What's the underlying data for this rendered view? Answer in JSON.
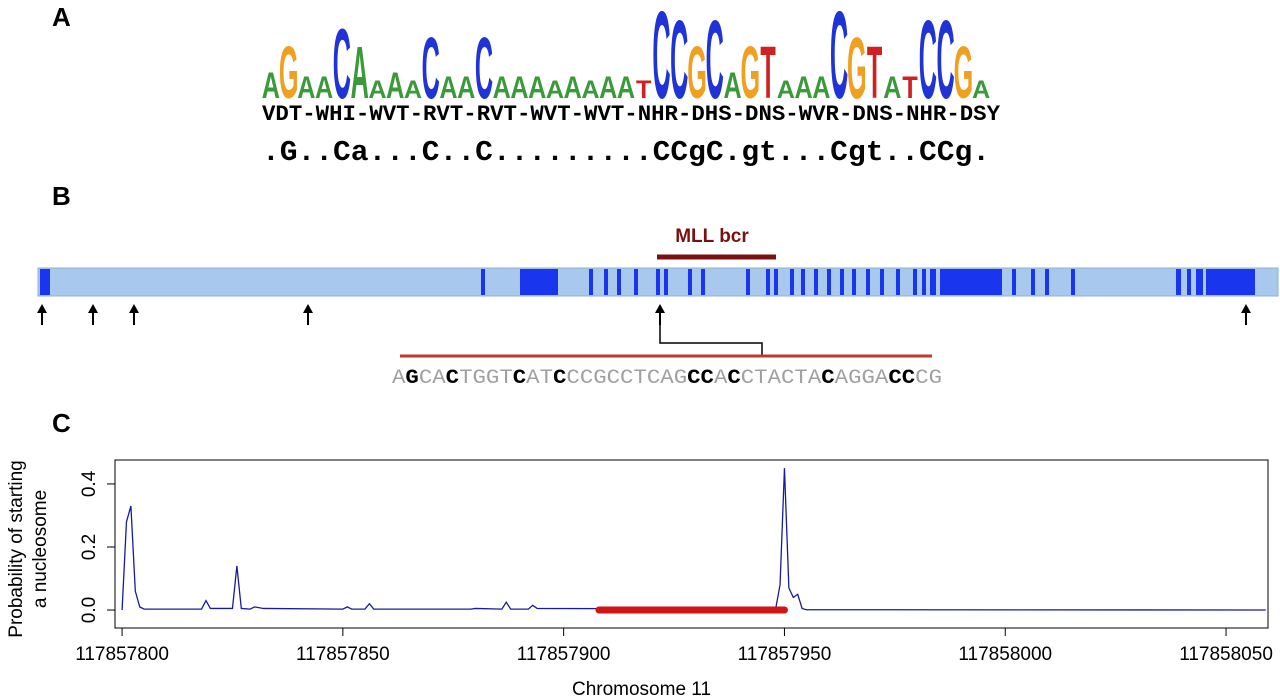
{
  "panel_labels": [
    "A",
    "B",
    "C"
  ],
  "logo": {
    "colors": {
      "A": "#3a9a3a",
      "C": "#1f33d6",
      "G": "#f0a020",
      "T": "#d02020"
    },
    "letters": [
      "A",
      "G",
      "A",
      "A",
      "C",
      "A",
      "A",
      "A",
      "A",
      "C",
      "A",
      "A",
      "C",
      "A",
      "A",
      "A",
      "A",
      "A",
      "A",
      "A",
      "A",
      "T",
      "C",
      "C",
      "G",
      "C",
      "A",
      "G",
      "T",
      "A",
      "A",
      "A",
      "C",
      "G",
      "T",
      "A",
      "T",
      "C",
      "C",
      "G",
      "A"
    ],
    "heights": [
      0.3,
      0.6,
      0.25,
      0.25,
      0.8,
      0.6,
      0.2,
      0.3,
      0.2,
      0.7,
      0.25,
      0.25,
      0.7,
      0.25,
      0.25,
      0.25,
      0.2,
      0.25,
      0.2,
      0.25,
      0.25,
      0.2,
      1,
      0.9,
      0.6,
      0.9,
      0.3,
      0.6,
      0.6,
      0.2,
      0.25,
      0.25,
      1,
      0.7,
      0.6,
      0.25,
      0.25,
      0.9,
      0.9,
      0.6,
      0.2
    ],
    "degenerate": "VDT-WHI-WVT-RVT-RVT-WVT-WVT-NHR-DHS-DNS-WVR-DNS-NHR-DSY",
    "consensus": ".G..Ca...C..C.........CCgC.gt...Cgt..CCg."
  },
  "gene": {
    "region_label": "MLL bcr",
    "sequence": [
      {
        "text": "A",
        "bold": false
      },
      {
        "text": "G",
        "bold": true
      },
      {
        "text": "CA",
        "bold": false
      },
      {
        "text": "C",
        "bold": true
      },
      {
        "text": "TGGT",
        "bold": false
      },
      {
        "text": "C",
        "bold": true
      },
      {
        "text": "AT",
        "bold": false
      },
      {
        "text": "C",
        "bold": true
      },
      {
        "text": "CCGCCTCAG",
        "bold": false
      },
      {
        "text": "CC",
        "bold": true
      },
      {
        "text": "A",
        "bold": false
      },
      {
        "text": "C",
        "bold": true
      },
      {
        "text": "CTACTA",
        "bold": false
      },
      {
        "text": "C",
        "bold": true
      },
      {
        "text": "AGGA",
        "bold": false
      },
      {
        "text": "CC",
        "bold": true
      },
      {
        "text": "CG",
        "bold": false
      }
    ]
  },
  "chart_data": {
    "type": "line",
    "xlabel": "Chromosome 11",
    "ylabel": [
      "Probability of starting",
      "a nucleosome"
    ],
    "color": "#1a1aa0",
    "x": [
      117857800,
      117857801,
      117857802,
      117857803,
      117857804,
      117857805,
      117857818,
      117857819,
      117857820,
      117857825,
      117857826,
      117857827,
      117857829,
      117857830,
      117857832,
      117857850,
      117857851,
      117857852,
      117857855,
      117857856,
      117857857,
      117857879,
      117857880,
      117857886,
      117857887,
      117857888,
      117857892,
      117857893,
      117857894,
      117857948,
      117857949,
      117857950,
      117857951,
      117857952,
      117857953,
      117857954,
      117857955,
      117858059
    ],
    "values": [
      0,
      0.28,
      0.33,
      0.06,
      0.01,
      0.003,
      0.003,
      0.03,
      0.005,
      0.005,
      0.14,
      0.005,
      0.003,
      0.01,
      0.005,
      0.003,
      0.01,
      0.003,
      0.003,
      0.02,
      0.003,
      0.003,
      0.005,
      0.003,
      0.025,
      0.003,
      0.003,
      0.015,
      0.005,
      0.003,
      0.08,
      0.45,
      0.07,
      0.04,
      0.05,
      0.005,
      0.001,
      0
    ],
    "highlight": [
      117857908,
      117857950
    ],
    "highlight_color": "#d01515",
    "xlim": [
      117857798.4,
      117858059.5
    ],
    "ylim": [
      -0.057,
      0.476
    ],
    "xticks": [
      117857800,
      117857850,
      117857900,
      117857950,
      117858000,
      117858050
    ],
    "yticks": [
      {
        "value": 0,
        "label": "0.0"
      },
      {
        "value": 0.2,
        "label": "0.2"
      },
      {
        "value": 0.4,
        "label": "0.4"
      }
    ]
  }
}
